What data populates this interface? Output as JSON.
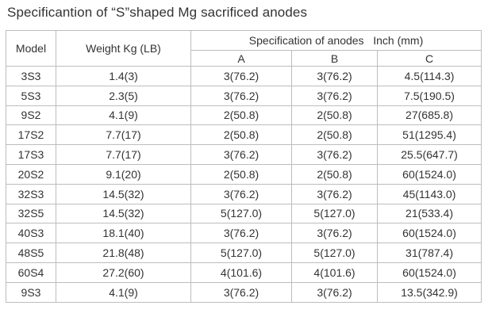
{
  "page": {
    "title": "Specificantion of “S”shaped Mg sacrificed anodes"
  },
  "table": {
    "header": {
      "model": "Model",
      "weight": "Weight Kg (LB)",
      "spec_group": "Specification of anodes   Inch (mm)",
      "col_a": "A",
      "col_b": "B",
      "col_c": "C"
    },
    "rows": [
      {
        "model": "3S3",
        "weight": "1.4(3)",
        "a": "3(76.2)",
        "b": "3(76.2)",
        "c": "4.5(114.3)"
      },
      {
        "model": "5S3",
        "weight": "2.3(5)",
        "a": "3(76.2)",
        "b": "3(76.2)",
        "c": "7.5(190.5)"
      },
      {
        "model": "9S2",
        "weight": "4.1(9)",
        "a": "2(50.8)",
        "b": "2(50.8)",
        "c": "27(685.8)"
      },
      {
        "model": "17S2",
        "weight": "7.7(17)",
        "a": "2(50.8)",
        "b": "2(50.8)",
        "c": "51(1295.4)"
      },
      {
        "model": "17S3",
        "weight": "7.7(17)",
        "a": "3(76.2)",
        "b": "3(76.2)",
        "c": "25.5(647.7)"
      },
      {
        "model": "20S2",
        "weight": "9.1(20)",
        "a": "2(50.8)",
        "b": "2(50.8)",
        "c": "60(1524.0)"
      },
      {
        "model": "32S3",
        "weight": "14.5(32)",
        "a": "3(76.2)",
        "b": "3(76.2)",
        "c": "45(1143.0)"
      },
      {
        "model": "32S5",
        "weight": "14.5(32)",
        "a": "5(127.0)",
        "b": "5(127.0)",
        "c": "21(533.4)"
      },
      {
        "model": "40S3",
        "weight": "18.1(40)",
        "a": "3(76.2)",
        "b": "3(76.2)",
        "c": "60(1524.0)"
      },
      {
        "model": "48S5",
        "weight": "21.8(48)",
        "a": "5(127.0)",
        "b": "5(127.0)",
        "c": "31(787.4)"
      },
      {
        "model": "60S4",
        "weight": "27.2(60)",
        "a": "4(101.6)",
        "b": "4(101.6)",
        "c": "60(1524.0)"
      },
      {
        "model": "9S3",
        "weight": "4.1(9)",
        "a": "3(76.2)",
        "b": "3(76.2)",
        "c": "13.5(342.9)"
      }
    ]
  }
}
